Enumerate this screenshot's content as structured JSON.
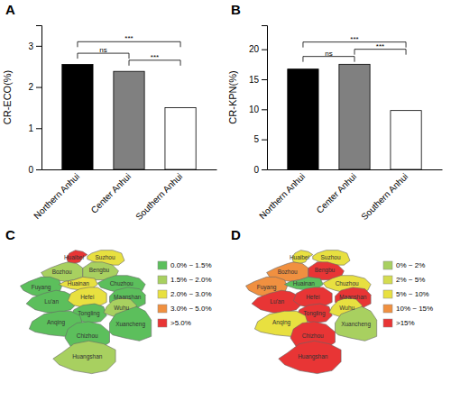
{
  "chart_data": [
    {
      "type": "bar",
      "title": "A",
      "categories": [
        "Northern Anhui",
        "Center Anhui",
        "Southern Anhui"
      ],
      "values": [
        2.55,
        2.38,
        1.5
      ],
      "colors": [
        "#000000",
        "#808080",
        "#ffffff"
      ],
      "y_label": "CR-ECO(%)",
      "ylim": [
        0,
        3.5
      ],
      "yticks": [
        0,
        1,
        2,
        3
      ],
      "annotations": [
        {
          "text": "ns",
          "between": [
            "Northern Anhui",
            "Center Anhui"
          ],
          "y": 2.82
        },
        {
          "text": "***",
          "between": [
            "Northern Anhui",
            "Southern Anhui"
          ],
          "y": 3.1
        },
        {
          "text": "***",
          "between": [
            "Center Anhui",
            "Southern Anhui"
          ],
          "y": 2.65
        }
      ]
    },
    {
      "type": "bar",
      "title": "B",
      "categories": [
        "Northern Anhui",
        "Center Anhui",
        "Southern Anhui"
      ],
      "values": [
        16.7,
        17.5,
        9.8
      ],
      "colors": [
        "#000000",
        "#808080",
        "#ffffff"
      ],
      "y_label": "CR-KPN(%)",
      "ylim": [
        0,
        24
      ],
      "yticks": [
        0,
        5,
        10,
        15,
        20
      ],
      "annotations": [
        {
          "text": "ns",
          "between": [
            "Northern Anhui",
            "Center Anhui"
          ],
          "y": 18.8
        },
        {
          "text": "***",
          "between": [
            "Northern Anhui",
            "Southern Anhui"
          ],
          "y": 21.2
        },
        {
          "text": "***",
          "between": [
            "Center Anhui",
            "Southern Anhui"
          ],
          "y": 20.0
        }
      ]
    },
    {
      "type": "map",
      "title": "C",
      "categories": [
        "Huaibei",
        "Suzhou",
        "Bozhou",
        "Bengbu",
        "Fuyang",
        "Huainan",
        "Chuzhou",
        "Lu'an",
        "Hefei",
        "Maanshan",
        "Tongling",
        "Wuhu",
        "Xuancheng",
        "Anqing",
        "Chizhou",
        "Huangshan"
      ],
      "colors": [
        "#e83535",
        "#e8e040",
        "#a8d060",
        "#a8d060",
        "#5cbf5c",
        "#e8e040",
        "#5cbf5c",
        "#5cbf5c",
        "#e8e040",
        "#5cbf5c",
        "#5cbf5c",
        "#a8d060",
        "#5cbf5c",
        "#5cbf5c",
        "#5cbf5c",
        "#a8d060"
      ],
      "series": [
        {
          "name": "0.0% ~ 1.5%",
          "color": "#5cbf5c"
        },
        {
          "name": "1.5% ~ 2.0%",
          "color": "#a8d060"
        },
        {
          "name": "2.0% ~ 3.0%",
          "color": "#e8e040"
        },
        {
          "name": "3.0% ~ 5.0%",
          "color": "#f09040"
        },
        {
          "name": ">5.0%",
          "color": "#e83535"
        }
      ],
      "legend": "right"
    },
    {
      "type": "map",
      "title": "D",
      "categories": [
        "Huaibei",
        "Suzhou",
        "Bozhou",
        "Bengbu",
        "Fuyang",
        "Huainan",
        "Chuzhou",
        "Lu'an",
        "Hefei",
        "Maanshan",
        "Tongling",
        "Wuhu",
        "Xuancheng",
        "Anqing",
        "Chizhou",
        "Huangshan"
      ],
      "colors": [
        "#e8e040",
        "#e8e040",
        "#f09040",
        "#e83535",
        "#f09040",
        "#5cbf5c",
        "#e8e040",
        "#e83535",
        "#e83535",
        "#e83535",
        "#e83535",
        "#e8e040",
        "#a8d060",
        "#e8e040",
        "#e83535",
        "#e83535"
      ],
      "series": [
        {
          "name": "0% ~ 2%",
          "color": "#a8d060"
        },
        {
          "name": "2% ~ 5%",
          "color": "#d4dc50"
        },
        {
          "name": "5% ~ 10%",
          "color": "#e8e040"
        },
        {
          "name": "10% ~ 15%",
          "color": "#f09040"
        },
        {
          "name": ">15%",
          "color": "#e83535"
        }
      ],
      "legend": "right"
    }
  ]
}
